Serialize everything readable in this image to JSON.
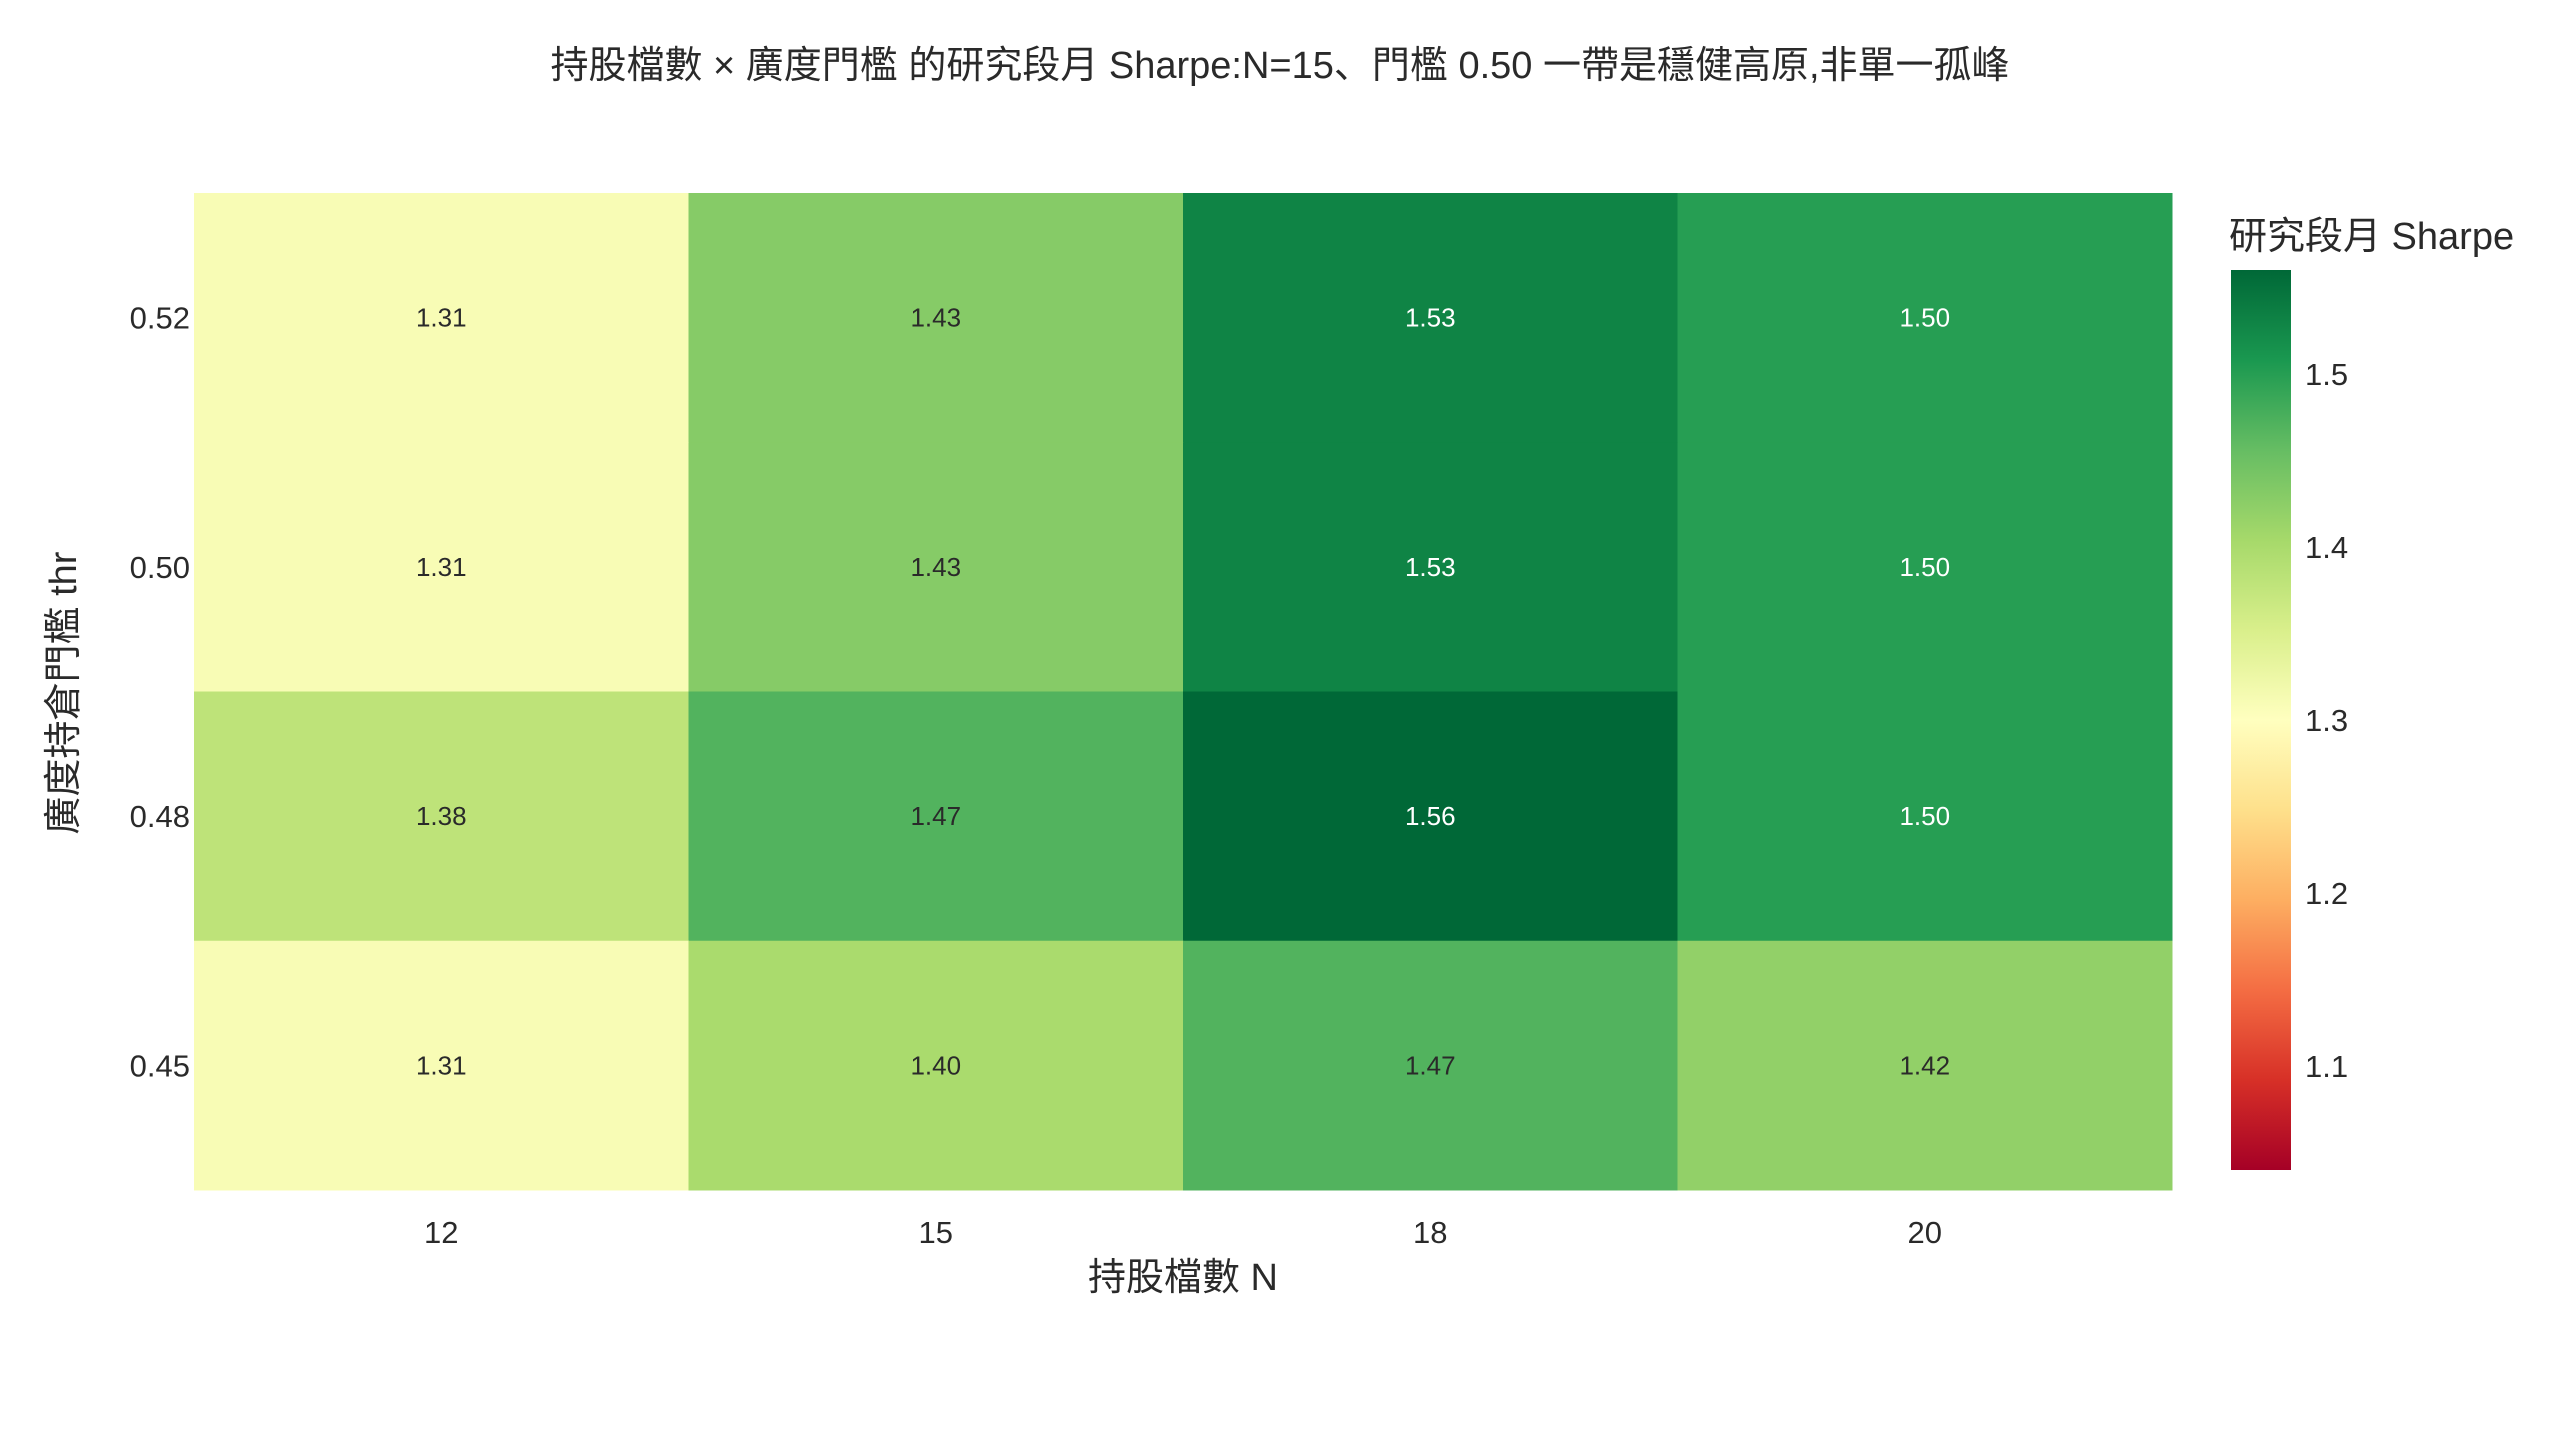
{
  "chart_data": {
    "type": "heatmap",
    "title": "持股檔數 × 廣度門檻 的研究段月 Sharpe:N=15、門檻 0.50 一帶是穩健高原,非單一孤峰",
    "xlabel": "持股檔數 N",
    "ylabel": "廣度持倉門檻 thr",
    "x": [
      "12",
      "15",
      "18",
      "20"
    ],
    "y": [
      "0.52",
      "0.50",
      "0.48",
      "0.45"
    ],
    "z": [
      [
        1.31,
        1.43,
        1.53,
        1.5
      ],
      [
        1.31,
        1.43,
        1.53,
        1.5
      ],
      [
        1.38,
        1.47,
        1.56,
        1.5
      ],
      [
        1.31,
        1.4,
        1.47,
        1.42
      ]
    ],
    "z_labels": [
      [
        "1.31",
        "1.43",
        "1.53",
        "1.50"
      ],
      [
        "1.31",
        "1.43",
        "1.53",
        "1.50"
      ],
      [
        "1.38",
        "1.47",
        "1.56",
        "1.50"
      ],
      [
        "1.31",
        "1.40",
        "1.47",
        "1.42"
      ]
    ],
    "colorscale": "RdYlGn",
    "zrange": [
      1.04,
      1.56
    ],
    "colorbar": {
      "title": "研究段月 Sharpe",
      "ticks": [
        1.1,
        1.2,
        1.3,
        1.4,
        1.5
      ],
      "tick_labels": [
        "1.1",
        "1.2",
        "1.3",
        "1.4",
        "1.5"
      ]
    },
    "grid": false
  }
}
